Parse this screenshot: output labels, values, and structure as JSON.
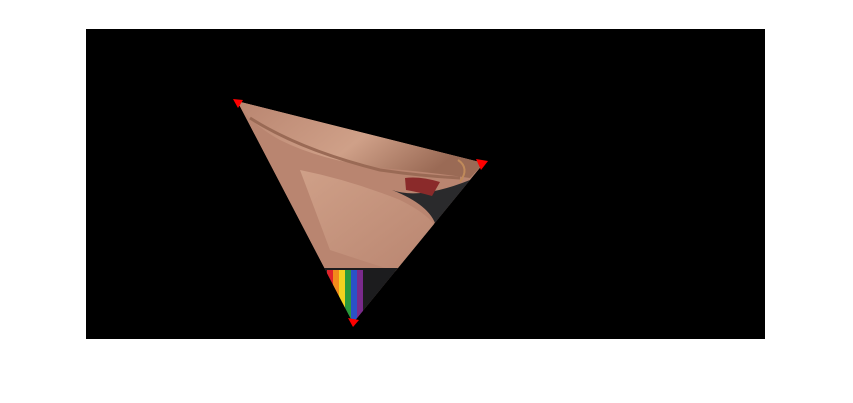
{
  "figure": {
    "background_color": "#ffffff",
    "canvas_color": "#000000",
    "marker_color": "#ff0000",
    "skin_light": "#cfa088",
    "skin_mid": "#b98570",
    "skin_dark": "#9a6a55",
    "fabric_color": "#2a2a2c",
    "fabric_shadow": "#1c1c1e",
    "stripe_colors": [
      "#e0242b",
      "#f28a1c",
      "#f3d21f",
      "#2a9a3c",
      "#2a52c8",
      "#7a2a8c"
    ]
  }
}
